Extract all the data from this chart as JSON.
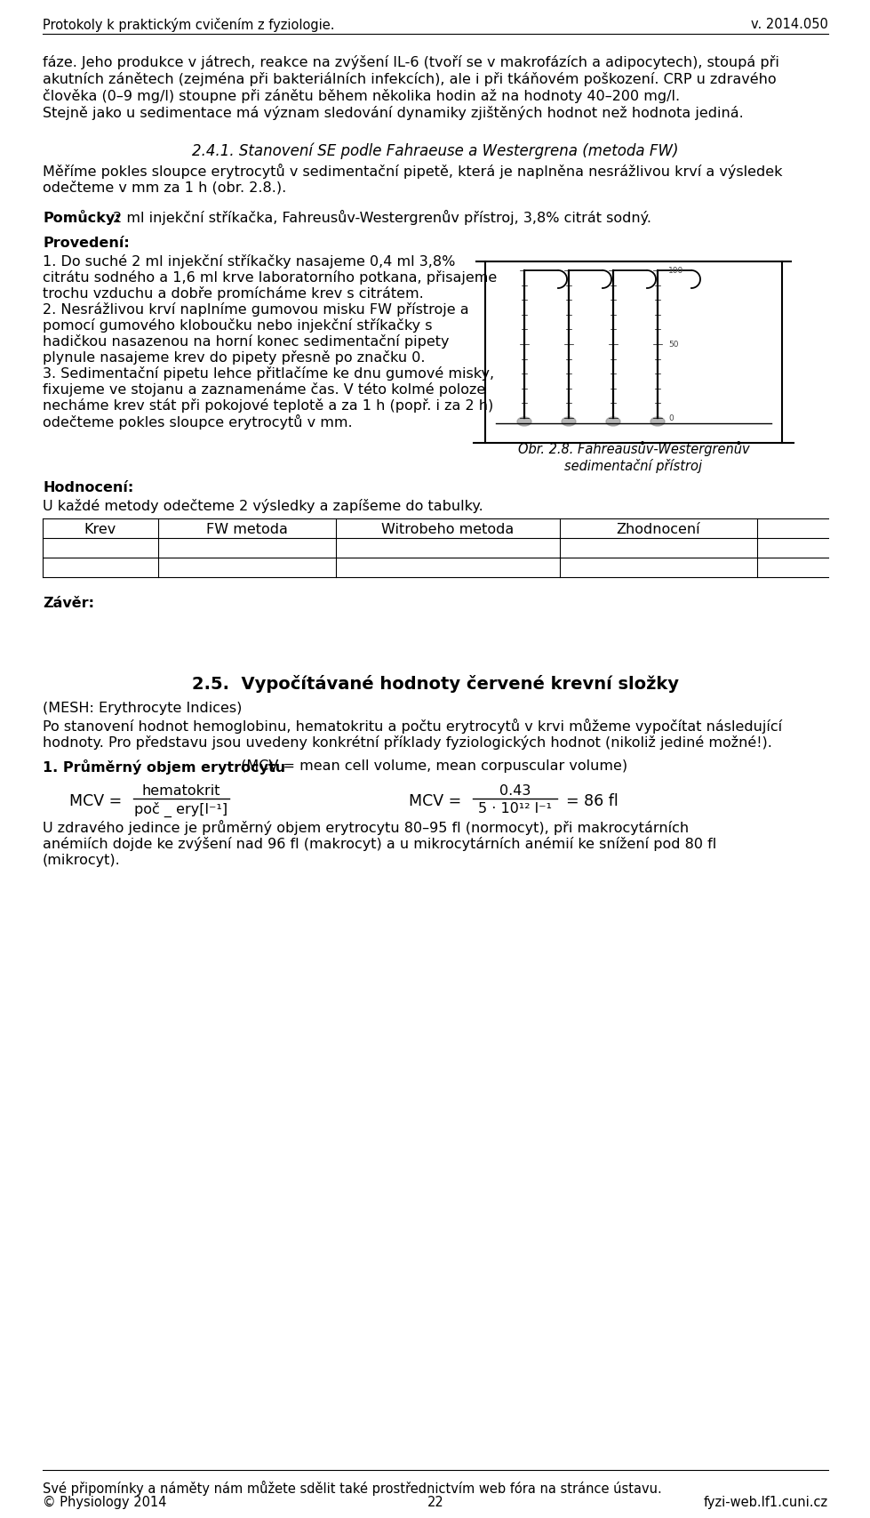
{
  "bg_color": "#ffffff",
  "text_color": "#000000",
  "header_left": "Protokoly k praktickým cvičením z fyziologie.",
  "header_right": "v. 2014.050",
  "footer_line1": "Své připomínky a náměty nám můžete sdělit také prostřednictvím web fóra na stránce ústavu.",
  "footer_left": "© Physiology 2014",
  "footer_center": "22",
  "footer_right": "fyzi-web.lf1.cuni.cz",
  "table_headers": [
    "Krev",
    "FW metoda",
    "Witrobeho metoda",
    "Zhodnocení"
  ]
}
